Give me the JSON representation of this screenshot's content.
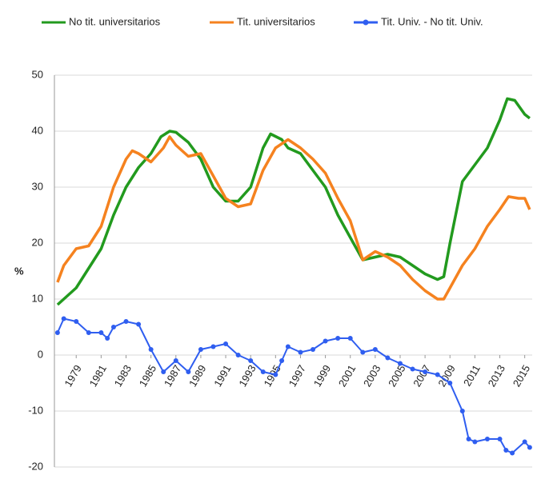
{
  "chart_data": {
    "type": "line",
    "y_label": "%",
    "xlim": [
      1977.25,
      2015.6
    ],
    "xticks": [
      1979,
      1981,
      1983,
      1985,
      1987,
      1989,
      1991,
      1993,
      1995,
      1997,
      1999,
      2001,
      2003,
      2005,
      2007,
      2009,
      2011,
      2013,
      2015
    ],
    "ylim": [
      -20,
      50
    ],
    "yticks": [
      -20,
      -10,
      0,
      10,
      20,
      30,
      40,
      50
    ],
    "grid": true,
    "series": [
      {
        "name": "No tit. universitarios",
        "color": "#229a1e",
        "markers": false,
        "x": [
          1977.5,
          1978,
          1979,
          1980,
          1981,
          1982,
          1983,
          1984,
          1985,
          1985.8,
          1986.5,
          1987,
          1988,
          1989,
          1990,
          1991,
          1992,
          1993,
          1994,
          1994.6,
          1995.5,
          1996,
          1997,
          1998,
          1999,
          2000,
          2001,
          2002,
          2003,
          2004,
          2005,
          2006,
          2007,
          2008,
          2008.5,
          2009,
          2010,
          2011,
          2012,
          2013,
          2013.6,
          2014.2,
          2015,
          2015.4
        ],
        "values": [
          9,
          10,
          12,
          15.5,
          19,
          25,
          30,
          33.5,
          36,
          39,
          40,
          39.8,
          38,
          35,
          30,
          27.5,
          27.5,
          30,
          37,
          39.5,
          38.5,
          37,
          36,
          33,
          30,
          25,
          21,
          17,
          17.5,
          18,
          17.5,
          16,
          14.5,
          13.5,
          14,
          20,
          31,
          34,
          37,
          42,
          45.8,
          45.5,
          43,
          42.3
        ]
      },
      {
        "name": "Tit. universitarios",
        "color": "#f5821f",
        "markers": false,
        "x": [
          1977.5,
          1978,
          1979,
          1980,
          1981,
          1982,
          1983,
          1983.5,
          1984,
          1985,
          1986,
          1986.5,
          1987,
          1988,
          1989,
          1990,
          1991,
          1992,
          1993,
          1994,
          1995,
          1996,
          1997,
          1998,
          1999,
          2000,
          2001,
          2002,
          2003,
          2004,
          2005,
          2006,
          2007,
          2008,
          2008.5,
          2009,
          2010,
          2011,
          2012,
          2013,
          2013.7,
          2014.5,
          2015,
          2015.4
        ],
        "values": [
          13,
          16,
          19,
          19.5,
          23,
          30,
          35,
          36.5,
          36,
          34.5,
          37,
          39,
          37.5,
          35.5,
          36,
          32,
          28,
          26.5,
          27,
          33,
          37,
          38.5,
          37,
          35,
          32.5,
          28,
          24,
          17,
          18.5,
          17.5,
          16,
          13.5,
          11.5,
          10,
          10,
          12,
          16,
          19,
          23,
          26,
          28.3,
          28,
          28,
          26
        ]
      },
      {
        "name": "Tit. Univ. - No tit. Univ.",
        "color": "#2f5ef0",
        "markers": true,
        "x": [
          1977.5,
          1978,
          1979,
          1980,
          1981,
          1981.5,
          1982,
          1983,
          1984,
          1985,
          1986,
          1987,
          1988,
          1989,
          1990,
          1991,
          1992,
          1993,
          1994,
          1995,
          1995.5,
          1996,
          1997,
          1998,
          1999,
          2000,
          2001,
          2002,
          2003,
          2004,
          2005,
          2006,
          2007,
          2008,
          2009,
          2010,
          2010.5,
          2011,
          2012,
          2013,
          2013.5,
          2014,
          2015,
          2015.4
        ],
        "values": [
          4,
          6.5,
          6,
          4,
          4,
          3,
          5,
          6,
          5.5,
          1,
          -3,
          -1,
          -3,
          1,
          1.5,
          2,
          0,
          -1,
          -3,
          -3.5,
          -1,
          1.5,
          0.5,
          1,
          2.5,
          3,
          3,
          0.5,
          1,
          -0.5,
          -1.5,
          -2.5,
          -3,
          -3.5,
          -5,
          -10,
          -15,
          -15.5,
          -15,
          -15,
          -17,
          -17.5,
          -15.5,
          -16.5
        ]
      }
    ]
  }
}
